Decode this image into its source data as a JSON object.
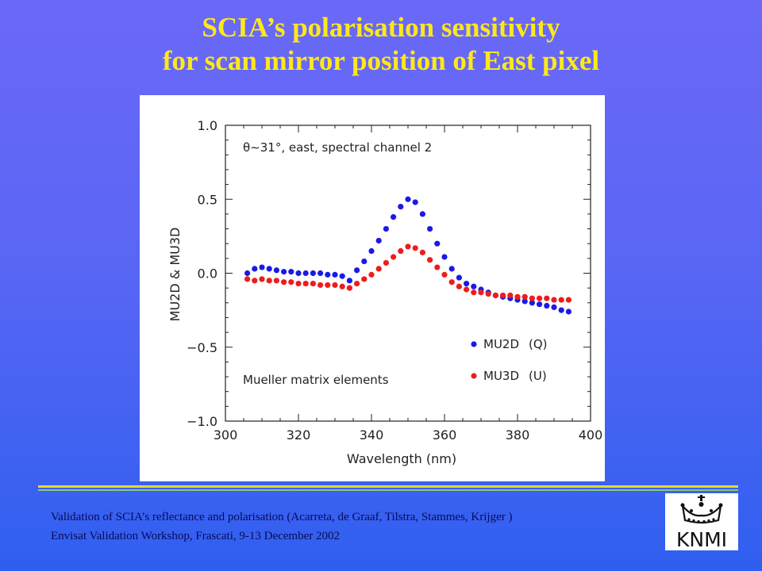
{
  "header": {
    "title_line1": "SCIA’s polarisation sensitivity",
    "title_line2": "for scan mirror position of East pixel"
  },
  "footer": {
    "line1": "Validation of SCIA’s reflectance and polarisation (Acarreta, de Graaf, Tilstra, Stammes, Krijger )",
    "line2": "Envisat Validation Workshop, Frascati, 9-13 December 2002"
  },
  "logo": {
    "text": "KNMI",
    "icon": "crown-icon"
  },
  "colors": {
    "title": "#fde81b",
    "mu2d": "#1a1ae6",
    "mu3d": "#ee1c1c"
  },
  "chart_data": {
    "type": "scatter",
    "annotation": "θ∼31°, east, spectral channel 2",
    "inset_label": "Mueller matrix elements",
    "xlabel": "Wavelength (nm)",
    "ylabel": "MU2D & MU3D",
    "xlim": [
      300,
      400
    ],
    "ylim": [
      -1.0,
      1.0
    ],
    "xticks": [
      "300",
      "320",
      "340",
      "360",
      "380",
      "400"
    ],
    "yticks": [
      "1.0",
      "0.5",
      "0.0",
      "−0.5",
      "−1.0"
    ],
    "legend_placement": "bottom-right",
    "series": [
      {
        "name": "MU2D",
        "legend_suffix": "(Q)",
        "color": "#1a1ae6",
        "x": [
          306,
          308,
          310,
          312,
          314,
          316,
          318,
          320,
          322,
          324,
          326,
          328,
          330,
          332,
          334,
          336,
          338,
          340,
          342,
          344,
          346,
          348,
          350,
          352,
          354,
          356,
          358,
          360,
          362,
          364,
          366,
          368,
          370,
          372,
          374,
          376,
          378,
          380,
          382,
          384,
          386,
          388,
          390,
          392,
          394
        ],
        "y": [
          0.0,
          0.03,
          0.04,
          0.03,
          0.02,
          0.01,
          0.01,
          0.0,
          0.0,
          0.0,
          0.0,
          -0.01,
          -0.01,
          -0.02,
          -0.05,
          0.02,
          0.08,
          0.15,
          0.22,
          0.3,
          0.38,
          0.45,
          0.5,
          0.48,
          0.4,
          0.3,
          0.2,
          0.11,
          0.03,
          -0.03,
          -0.07,
          -0.09,
          -0.11,
          -0.13,
          -0.15,
          -0.16,
          -0.17,
          -0.18,
          -0.19,
          -0.2,
          -0.21,
          -0.22,
          -0.23,
          -0.25,
          -0.26
        ]
      },
      {
        "name": "MU3D",
        "legend_suffix": "(U)",
        "color": "#ee1c1c",
        "x": [
          306,
          308,
          310,
          312,
          314,
          316,
          318,
          320,
          322,
          324,
          326,
          328,
          330,
          332,
          334,
          336,
          338,
          340,
          342,
          344,
          346,
          348,
          350,
          352,
          354,
          356,
          358,
          360,
          362,
          364,
          366,
          368,
          370,
          372,
          374,
          376,
          378,
          380,
          382,
          384,
          386,
          388,
          390,
          392,
          394
        ],
        "y": [
          -0.04,
          -0.05,
          -0.04,
          -0.05,
          -0.05,
          -0.06,
          -0.06,
          -0.07,
          -0.07,
          -0.07,
          -0.08,
          -0.08,
          -0.08,
          -0.09,
          -0.1,
          -0.07,
          -0.04,
          -0.01,
          0.03,
          0.07,
          0.11,
          0.15,
          0.18,
          0.17,
          0.14,
          0.09,
          0.04,
          -0.01,
          -0.06,
          -0.09,
          -0.11,
          -0.13,
          -0.13,
          -0.14,
          -0.15,
          -0.15,
          -0.15,
          -0.16,
          -0.16,
          -0.17,
          -0.17,
          -0.17,
          -0.18,
          -0.18,
          -0.18
        ]
      }
    ]
  }
}
